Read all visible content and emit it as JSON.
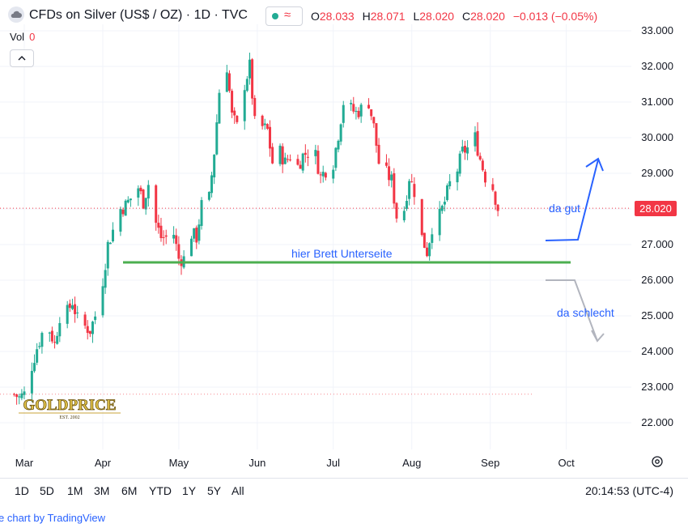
{
  "header": {
    "title": "CFDs on Silver (US$ / OZ) · 1D · TVC",
    "ohlc": {
      "o_label": "O",
      "o_value": "28.033",
      "h_label": "H",
      "h_value": "28.071",
      "l_label": "L",
      "l_value": "28.020",
      "c_label": "C",
      "c_value": "28.020",
      "change": "−0.013 (−0.05%)"
    },
    "volume_label": "Vol",
    "volume_value": "0"
  },
  "colors": {
    "up": "#22ab94",
    "down": "#f23645",
    "support_line": "#4caf50",
    "annotation": "#2962ff",
    "bear_arrow": "#b2b5be"
  },
  "chart_data": {
    "type": "candlestick",
    "title": "CFDs on Silver (US$ / OZ) · 1D · TVC",
    "ylim": [
      21.5,
      33.2
    ],
    "y_ticks": [
      "33.000",
      "32.000",
      "31.000",
      "30.000",
      "29.000",
      "28.000",
      "27.000",
      "26.000",
      "25.000",
      "24.000",
      "23.000",
      "22.000"
    ],
    "x_ticks": [
      "Mar",
      "Apr",
      "May",
      "Jun",
      "Jul",
      "Aug",
      "Sep",
      "Oct"
    ],
    "last_price": "28.020",
    "support_level": 26.5,
    "support_label": "hier Brett Unterseite",
    "bull_label": "da gut",
    "bear_label": "da schlecht",
    "close_path": [
      [
        "2024-02-26",
        22.8
      ],
      [
        "2024-02-28",
        22.7
      ],
      [
        "2024-03-01",
        22.8
      ],
      [
        "2024-03-04",
        23.6
      ],
      [
        "2024-03-06",
        24.1
      ],
      [
        "2024-03-08",
        24.5
      ],
      [
        "2024-03-11",
        24.6
      ],
      [
        "2024-03-13",
        24.2
      ],
      [
        "2024-03-15",
        25.0
      ],
      [
        "2024-03-18",
        25.1
      ],
      [
        "2024-03-20",
        25.4
      ],
      [
        "2024-03-22",
        24.9
      ],
      [
        "2024-03-25",
        24.7
      ],
      [
        "2024-03-27",
        24.6
      ],
      [
        "2024-03-29",
        25.0
      ],
      [
        "2024-04-01",
        26.0
      ],
      [
        "2024-04-03",
        27.0
      ],
      [
        "2024-04-05",
        27.4
      ],
      [
        "2024-04-08",
        28.0
      ],
      [
        "2024-04-10",
        28.1
      ],
      [
        "2024-04-12",
        28.3
      ],
      [
        "2024-04-15",
        28.6
      ],
      [
        "2024-04-17",
        28.2
      ],
      [
        "2024-04-19",
        28.7
      ],
      [
        "2024-04-22",
        27.6
      ],
      [
        "2024-04-24",
        27.2
      ],
      [
        "2024-04-26",
        27.2
      ],
      [
        "2024-04-29",
        27.3
      ],
      [
        "2024-05-01",
        26.6
      ],
      [
        "2024-05-03",
        26.6
      ],
      [
        "2024-05-06",
        27.3
      ],
      [
        "2024-05-08",
        27.2
      ],
      [
        "2024-05-10",
        28.1
      ],
      [
        "2024-05-13",
        28.3
      ],
      [
        "2024-05-15",
        29.6
      ],
      [
        "2024-05-17",
        31.3
      ],
      [
        "2024-05-20",
        32.0
      ],
      [
        "2024-05-22",
        30.6
      ],
      [
        "2024-05-24",
        30.3
      ],
      [
        "2024-05-27",
        31.5
      ],
      [
        "2024-05-29",
        32.0
      ],
      [
        "2024-05-31",
        30.4
      ],
      [
        "2024-06-03",
        30.3
      ],
      [
        "2024-06-05",
        30.2
      ],
      [
        "2024-06-07",
        29.3
      ],
      [
        "2024-06-10",
        29.6
      ],
      [
        "2024-06-12",
        29.3
      ],
      [
        "2024-06-14",
        29.5
      ],
      [
        "2024-06-17",
        29.2
      ],
      [
        "2024-06-19",
        29.5
      ],
      [
        "2024-06-21",
        29.6
      ],
      [
        "2024-06-24",
        29.5
      ],
      [
        "2024-06-26",
        28.9
      ],
      [
        "2024-06-28",
        29.1
      ],
      [
        "2024-07-01",
        29.3
      ],
      [
        "2024-07-03",
        30.1
      ],
      [
        "2024-07-05",
        31.0
      ],
      [
        "2024-07-08",
        30.8
      ],
      [
        "2024-07-10",
        30.7
      ],
      [
        "2024-07-12",
        30.8
      ],
      [
        "2024-07-15",
        31.0
      ],
      [
        "2024-07-17",
        30.3
      ],
      [
        "2024-07-19",
        29.3
      ],
      [
        "2024-07-22",
        29.0
      ],
      [
        "2024-07-24",
        28.8
      ],
      [
        "2024-07-26",
        27.8
      ],
      [
        "2024-07-29",
        28.0
      ],
      [
        "2024-07-31",
        28.9
      ],
      [
        "2024-08-02",
        28.5
      ],
      [
        "2024-08-05",
        27.2
      ],
      [
        "2024-08-07",
        26.8
      ],
      [
        "2024-08-09",
        27.5
      ],
      [
        "2024-08-12",
        27.8
      ],
      [
        "2024-08-14",
        28.2
      ],
      [
        "2024-08-16",
        28.7
      ],
      [
        "2024-08-19",
        29.1
      ],
      [
        "2024-08-21",
        29.6
      ],
      [
        "2024-08-23",
        29.7
      ],
      [
        "2024-08-26",
        30.0
      ],
      [
        "2024-08-28",
        29.4
      ],
      [
        "2024-08-30",
        28.9
      ],
      [
        "2024-09-02",
        28.6
      ],
      [
        "2024-09-04",
        28.02
      ]
    ]
  },
  "time_ranges": [
    "1D",
    "5D",
    "1M",
    "3M",
    "6M",
    "YTD",
    "1Y",
    "5Y",
    "All"
  ],
  "clock": "20:14:53 (UTC-4)",
  "footer_text": "e chart by TradingView",
  "watermark": "GOLDPRICE EST. 2002"
}
